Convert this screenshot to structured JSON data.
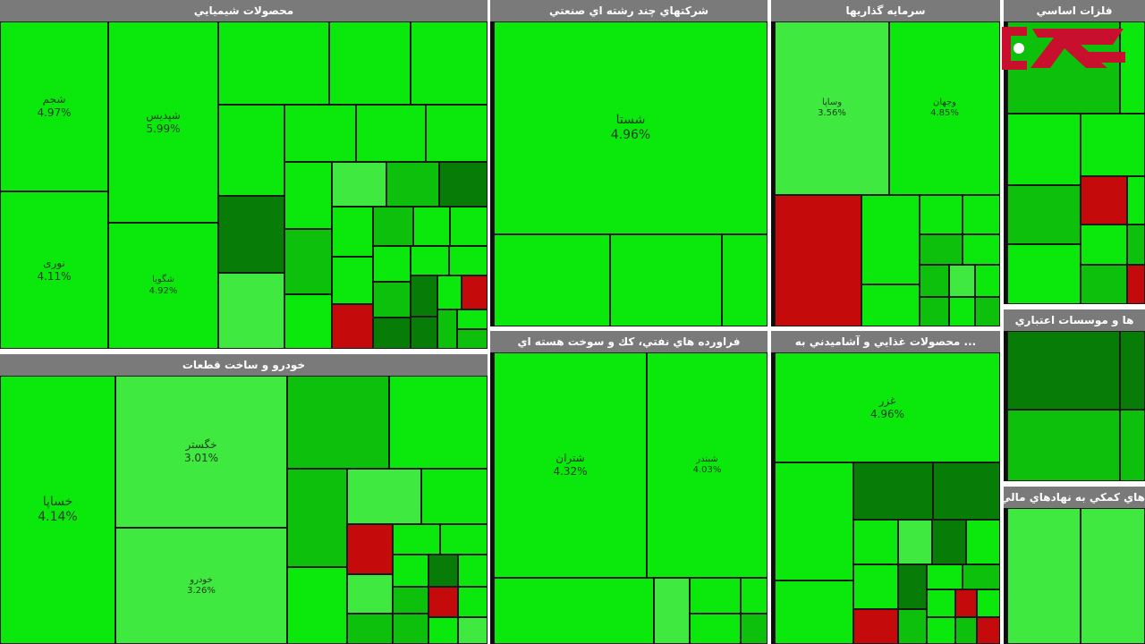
{
  "colors": {
    "strong_green": "#0be80b",
    "light_green": "#3fe93f",
    "medium_green": "#0cc00c",
    "dark_green": "#077c07",
    "red": "#c40a0a",
    "header_gray": "#7a7a7a"
  },
  "panels": {
    "chemicals": {
      "title": "محصولات شيميايي",
      "tiles": {
        "shatran_a": {
          "name": "شجم",
          "pct": "4.97%"
        },
        "nouri": {
          "name": "نوری",
          "pct": "4.11%"
        },
        "shpadis": {
          "name": "شپدیس",
          "pct": "5.99%"
        },
        "shgoya": {
          "name": "شگویا",
          "pct": "4.92%"
        }
      }
    },
    "auto": {
      "title": "خودرو و ساخت قطعات",
      "tiles": {
        "khsapa": {
          "name": "خساپا",
          "pct": "4.14%"
        },
        "khgostar": {
          "name": "خگستر",
          "pct": "3.01%"
        },
        "khodro": {
          "name": "خودرو",
          "pct": "3.26%"
        }
      }
    },
    "multi": {
      "title": "شركتهاي چند رشته اي صنعتي",
      "tiles": {
        "shasta": {
          "name": "شستا",
          "pct": "4.96%"
        }
      }
    },
    "petroleum": {
      "title": "فراورده هاي نفتي، كك و سوخت هسته اي",
      "tiles": {
        "shetran": {
          "name": "شتران",
          "pct": "4.32%"
        },
        "shebandar": {
          "name": "شبندر",
          "pct": "4.03%"
        }
      }
    },
    "investment": {
      "title": "سرمايه گذاريها",
      "tiles": {
        "vsapa": {
          "name": "وساپا",
          "pct": "3.56%"
        },
        "vjahan": {
          "name": "وجهان",
          "pct": "4.85%"
        }
      }
    },
    "food": {
      "title": "... محصولات غذايي و آشاميدني به",
      "tiles": {
        "ghzar": {
          "name": "غزر",
          "pct": "4.96%"
        }
      }
    },
    "basic_metals": {
      "title": "فلزات اساسي"
    },
    "banks": {
      "title": "ها و موسسات اعتباري"
    },
    "financial_aux": {
      "title": "هاي كمكي به نهادهاي مالي"
    }
  }
}
